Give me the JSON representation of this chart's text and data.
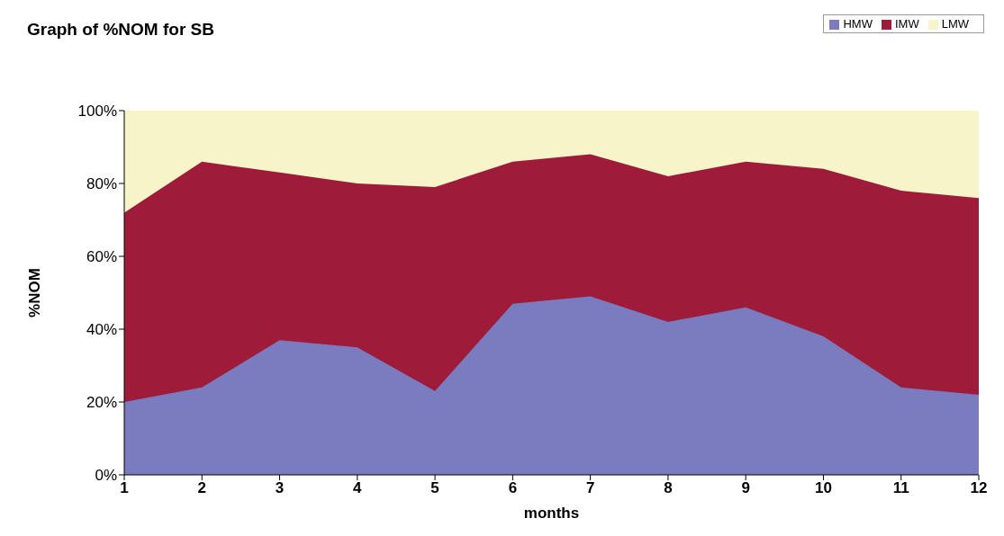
{
  "chart_data": {
    "type": "area",
    "title": "Graph of %NOM for SB",
    "xlabel": "months",
    "ylabel": "%NOM",
    "stacked": true,
    "legend": "top right",
    "x": [
      1,
      2,
      3,
      4,
      5,
      6,
      7,
      8,
      9,
      10,
      11,
      12
    ],
    "xlim": [
      1,
      12
    ],
    "xticks": [
      1,
      2,
      3,
      4,
      5,
      6,
      7,
      8,
      9,
      10,
      11,
      12
    ],
    "ylim": [
      0,
      100
    ],
    "yticks": [
      {
        "value": 0,
        "label": "0%"
      },
      {
        "value": 20,
        "label": "20%"
      },
      {
        "value": 40,
        "label": "40%"
      },
      {
        "value": 60,
        "label": "60%"
      },
      {
        "value": 80,
        "label": "80%"
      },
      {
        "value": 100,
        "label": "100%"
      }
    ],
    "series": [
      {
        "name": "HMW",
        "color": "#7b7bc0",
        "values": [
          20,
          24,
          37,
          35,
          23,
          47,
          49,
          42,
          46,
          38,
          24,
          22
        ]
      },
      {
        "name": "IMW",
        "color": "#9e1b3a",
        "values": [
          52,
          62,
          46,
          45,
          56,
          39,
          39,
          40,
          40,
          46,
          54,
          54
        ]
      },
      {
        "name": "LMW",
        "color": "#f6f4c8",
        "values": [
          28,
          14,
          17,
          20,
          21,
          14,
          12,
          18,
          14,
          16,
          22,
          24
        ]
      }
    ]
  }
}
